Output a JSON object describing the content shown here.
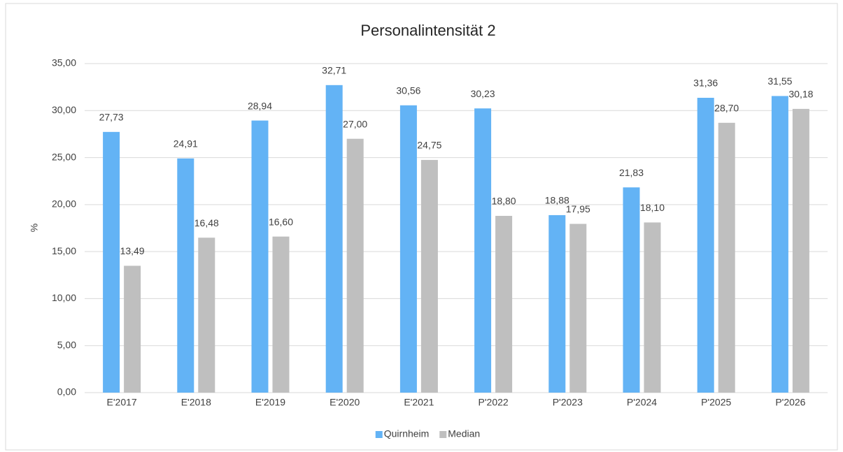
{
  "chart_data": {
    "type": "bar",
    "title": "Personalintensität 2",
    "y_label": "%",
    "categories": [
      "E'2017",
      "E'2018",
      "E'2019",
      "E'2020",
      "E'2021",
      "P'2022",
      "P'2023",
      "P'2024",
      "P'2025",
      "P'2026"
    ],
    "series": [
      {
        "name": "Quirnheim",
        "color": "#63b3f5",
        "values": [
          27.73,
          24.91,
          28.94,
          32.71,
          30.56,
          30.23,
          18.88,
          21.83,
          31.36,
          31.55
        ],
        "value_labels": [
          "27,73",
          "24,91",
          "28,94",
          "32,71",
          "30,56",
          "30,23",
          "18,88",
          "21,83",
          "31,36",
          "31,55"
        ]
      },
      {
        "name": "Median",
        "color": "#bfbfbf",
        "values": [
          13.49,
          16.48,
          16.6,
          27.0,
          24.75,
          18.8,
          17.95,
          18.1,
          28.7,
          30.18
        ],
        "value_labels": [
          "13,49",
          "16,48",
          "16,60",
          "27,00",
          "24,75",
          "18,80",
          "17,95",
          "18,10",
          "28,70",
          "30,18"
        ]
      }
    ],
    "ylim": [
      0,
      35
    ],
    "yticks": [
      {
        "value": 0,
        "label": "0,00"
      },
      {
        "value": 5,
        "label": "5,00"
      },
      {
        "value": 10,
        "label": "10,00"
      },
      {
        "value": 15,
        "label": "15,00"
      },
      {
        "value": 20,
        "label": "20,00"
      },
      {
        "value": 25,
        "label": "25,00"
      },
      {
        "value": 30,
        "label": "30,00"
      },
      {
        "value": 35,
        "label": "35,00"
      }
    ],
    "grid": true,
    "legend": "bottom"
  }
}
